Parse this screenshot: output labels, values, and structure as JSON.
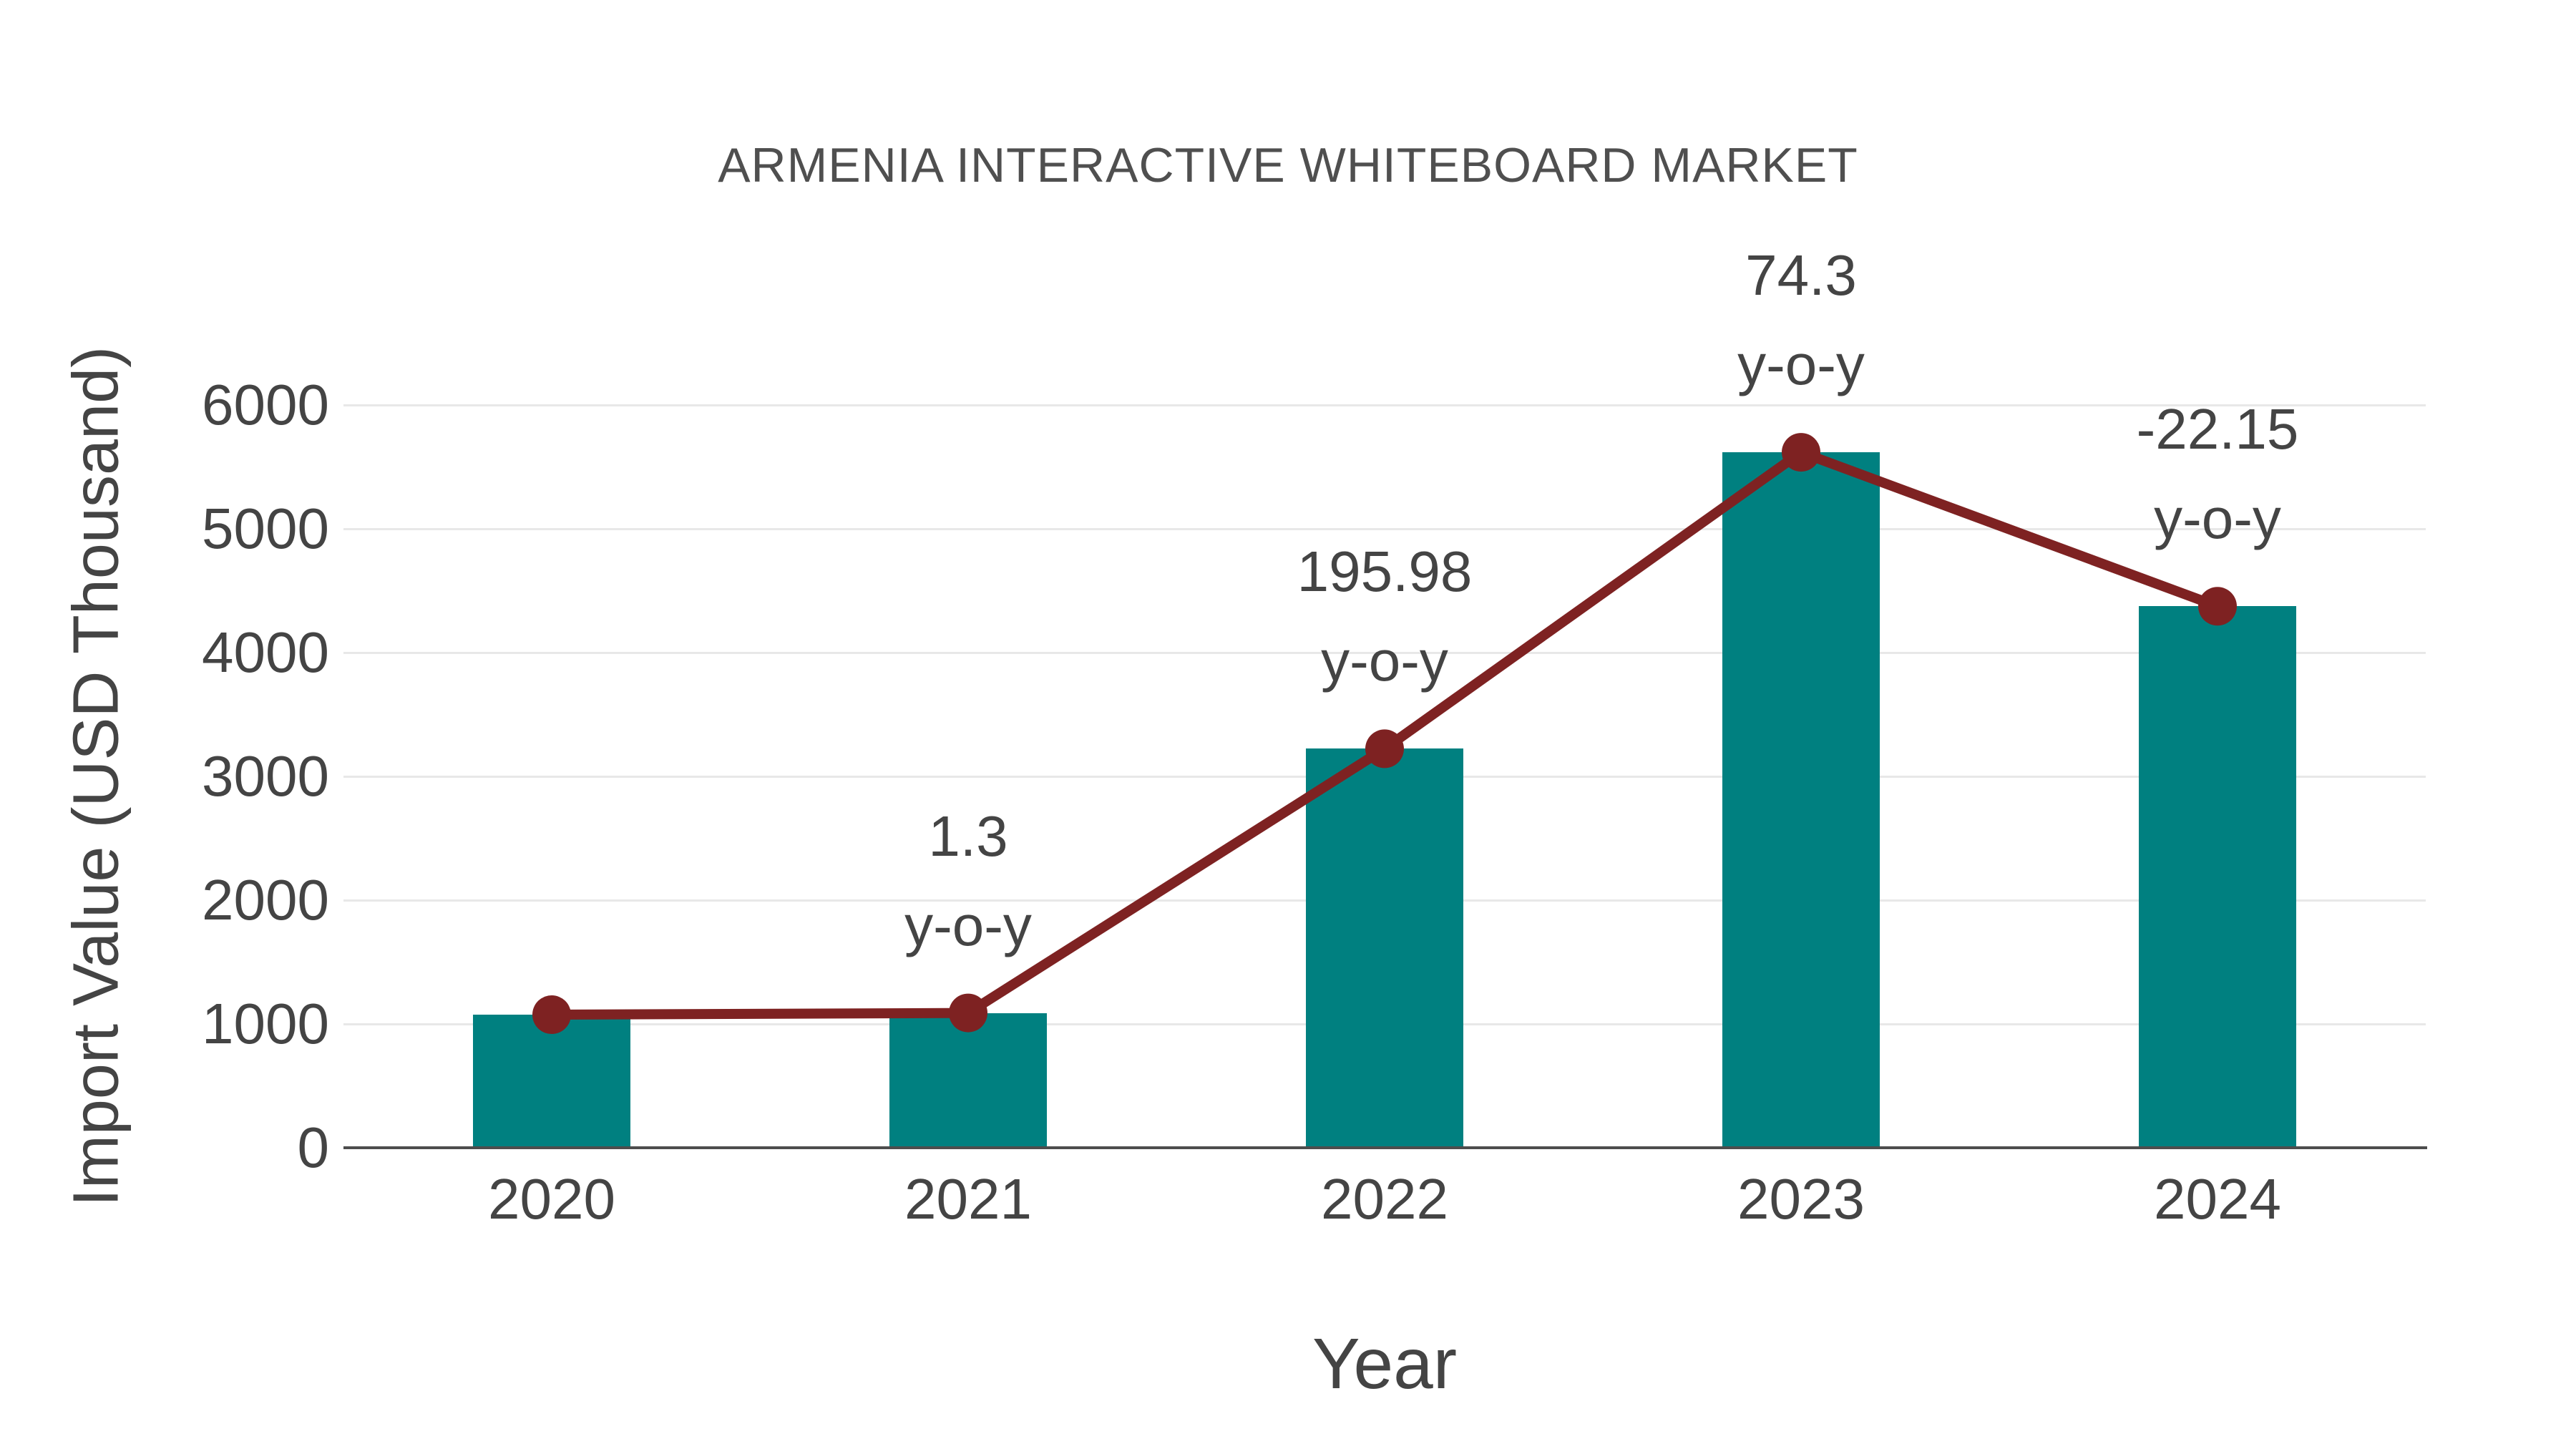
{
  "title": "ARMENIA INTERACTIVE WHITEBOARD MARKET",
  "chart_data": {
    "type": "bar",
    "categories": [
      "2020",
      "2021",
      "2022",
      "2023",
      "2024"
    ],
    "series": [
      {
        "name": "import-value-bars",
        "type": "bar",
        "values": [
          1075,
          1089,
          3223,
          5618,
          4374
        ]
      },
      {
        "name": "import-value-trend",
        "type": "line",
        "values": [
          1075,
          1089,
          3223,
          5618,
          4374
        ]
      }
    ],
    "annotations": [
      {
        "category": "2021",
        "line1": "1.3",
        "line2": "y-o-y"
      },
      {
        "category": "2022",
        "line1": "195.98",
        "line2": "y-o-y"
      },
      {
        "category": "2023",
        "line1": "74.3",
        "line2": "y-o-y"
      },
      {
        "category": "2024",
        "line1": "-22.15",
        "line2": "y-o-y"
      }
    ],
    "xlabel": "Year",
    "ylabel": "Import Value (USD Thousand)",
    "yticks": [
      0,
      1000,
      2000,
      3000,
      4000,
      5000,
      6000
    ],
    "ylim": [
      0,
      6000
    ],
    "grid": true,
    "legend_position": "none"
  },
  "colors": {
    "bar": "#008080",
    "line": "#7e2222",
    "marker": "#7e2222",
    "gridline": "#e8e8e8",
    "axis": "#4d4d4d",
    "text": "#444444",
    "title": "#4f4f4f",
    "background": "#ffffff"
  }
}
